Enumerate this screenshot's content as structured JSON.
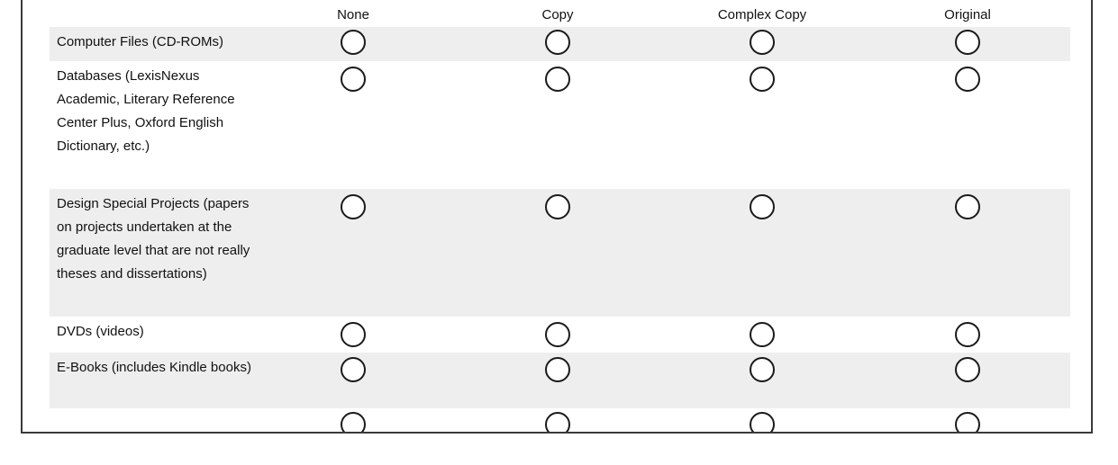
{
  "columns": [
    {
      "label": "None"
    },
    {
      "label": "Copy"
    },
    {
      "label": "Complex Copy"
    },
    {
      "label": "Original"
    }
  ],
  "rows": [
    {
      "label": "Computer Files (CD-ROMs)"
    },
    {
      "label": "Databases (LexisNexus Academic, Literary Reference Center Plus, Oxford English Dictionary, etc.)"
    },
    {
      "label": "Design Special Projects (papers on projects undertaken at the graduate level that are not really theses and dissertations)"
    },
    {
      "label": "DVDs (videos)"
    },
    {
      "label": "E-Books (includes Kindle books)"
    }
  ]
}
